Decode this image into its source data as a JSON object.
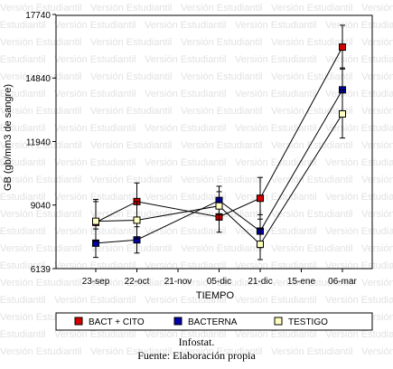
{
  "chart_data": {
    "type": "line",
    "xlabel": "TIEMPO",
    "ylabel": "GB (gb/mm3 de sangre)",
    "ylim": [
      6139,
      17740
    ],
    "yticks": [
      "6139",
      "9040",
      "11940",
      "14840",
      "17740"
    ],
    "categories": [
      "23-sep",
      "22-oct",
      "21-nov",
      "05-dic",
      "21-dic",
      "15-ene",
      "06-mar"
    ],
    "grid": false,
    "legend_position": "bottom",
    "series": [
      {
        "name": "BACT + CITO",
        "color": "#d40000",
        "points": [
          {
            "x": "23-sep",
            "y": 8250,
            "err": 1050
          },
          {
            "x": "22-oct",
            "y": 9200,
            "err": 850
          },
          {
            "x": "05-dic",
            "y": 8500,
            "err": 700
          },
          {
            "x": "21-dic",
            "y": 9350,
            "err": 950
          },
          {
            "x": "06-mar",
            "y": 16250,
            "err": 1000
          }
        ]
      },
      {
        "name": "BACTERNA",
        "color": "#0000a8",
        "points": [
          {
            "x": "23-sep",
            "y": 7300,
            "err": 650
          },
          {
            "x": "22-oct",
            "y": 7450,
            "err": 600
          },
          {
            "x": "05-dic",
            "y": 9250,
            "err": 650
          },
          {
            "x": "21-dic",
            "y": 7850,
            "err": 750
          },
          {
            "x": "06-mar",
            "y": 14300,
            "err": 1000
          }
        ]
      },
      {
        "name": "TESTIGO",
        "color": "#ffffc0",
        "points": [
          {
            "x": "23-sep",
            "y": 8300,
            "err": 900
          },
          {
            "x": "22-oct",
            "y": 8350,
            "err": 850
          },
          {
            "x": "05-dic",
            "y": 9000,
            "err": 650
          },
          {
            "x": "21-dic",
            "y": 7250,
            "err": 700
          },
          {
            "x": "06-mar",
            "y": 13200,
            "err": 1100
          }
        ]
      }
    ],
    "watermark": "Versión Estudiantil"
  },
  "caption": {
    "line1": "Infostat.",
    "line2": "Fuente: Elaboración propia"
  }
}
